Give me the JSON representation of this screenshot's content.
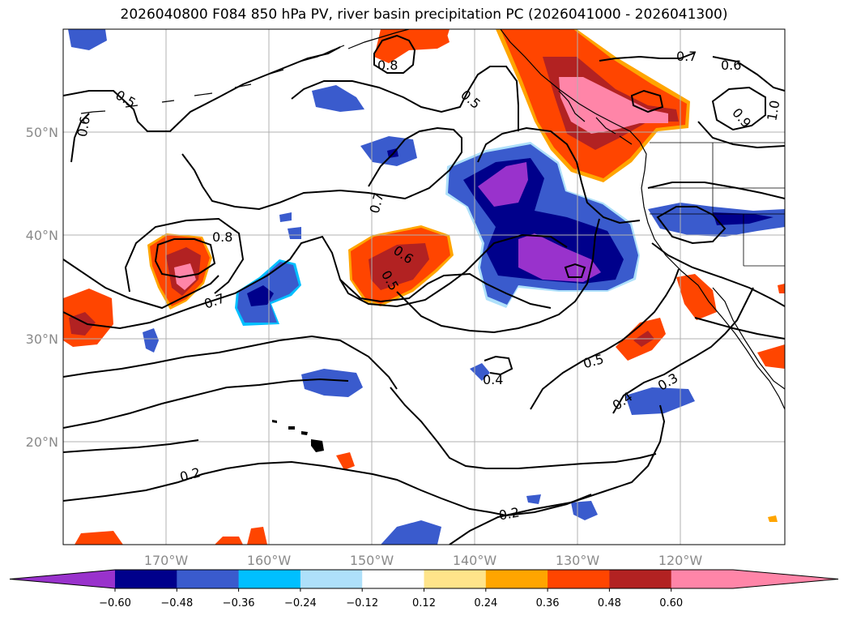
{
  "title": "2026040800 F084 850 hPa PV, river basin precipitation PC (2026041000 - 2026041300)",
  "lat_labels": [
    "50°N",
    "40°N",
    "30°N",
    "20°N"
  ],
  "lon_labels": [
    "170°W",
    "160°W",
    "150°W",
    "140°W",
    "130°W",
    "120°W"
  ],
  "colorbar": {
    "tick_labels": [
      "−0.60",
      "−0.48",
      "−0.36",
      "−0.24",
      "−0.12",
      "0.12",
      "0.24",
      "0.36",
      "0.48",
      "0.60"
    ],
    "colors": [
      "#9932cc",
      "#00008b",
      "#3a5bcd",
      "#00bfff",
      "#aee0fa",
      "#ffffff",
      "#ffe48a",
      "#ffa500",
      "#ff4500",
      "#b22222",
      "#ff85a8",
      "#ff85a8"
    ]
  },
  "contour_labels": [
    "0.5",
    "0.6",
    "0.8",
    "0.5",
    "0.7",
    "0.6",
    "1.0",
    "0.9",
    "0.7",
    "0.8",
    "0.7",
    "0.6",
    "0.5",
    "0.5",
    "0.4",
    "0.4",
    "0.3",
    "0.2",
    "0.2"
  ],
  "colors": {
    "contour": "#000000",
    "grid": "#b0b0b0",
    "coast": "#000000"
  }
}
